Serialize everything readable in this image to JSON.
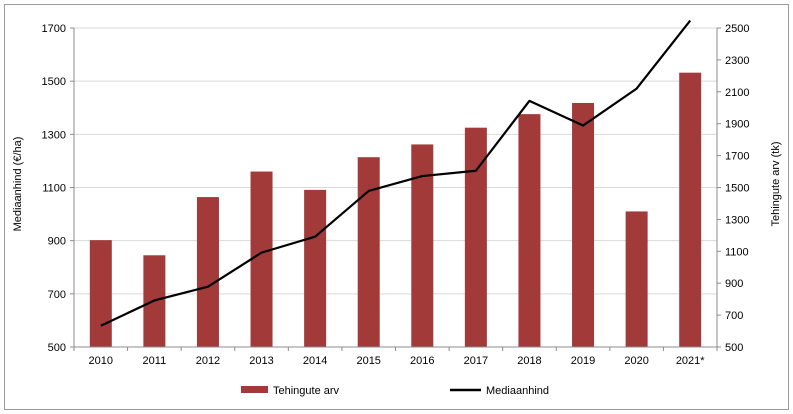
{
  "chart_data": {
    "type": "bar",
    "categories": [
      "2010",
      "2011",
      "2012",
      "2013",
      "2014",
      "2015",
      "2016",
      "2017",
      "2018",
      "2019",
      "2020",
      "2021*"
    ],
    "series": [
      {
        "name": "Tehingute arv",
        "type": "bar",
        "axis": "right",
        "color": "#a33a3a",
        "values": [
          1170,
          1075,
          1440,
          1600,
          1485,
          1690,
          1770,
          1875,
          1960,
          2030,
          1350,
          2220
        ]
      },
      {
        "name": "Mediaanhind",
        "type": "line",
        "axis": "left",
        "color": "#000000",
        "values": [
          580,
          675,
          727,
          855,
          915,
          1087,
          1143,
          1163,
          1426,
          1333,
          1472,
          1728
        ]
      }
    ],
    "ylabel": "Mediaanhind (€/ha)",
    "y2label": "Tehingute arv (tk)",
    "ylim": [
      500,
      1700
    ],
    "y2lim": [
      500,
      2500
    ],
    "yticks": [
      "500",
      "700",
      "900",
      "1100",
      "1300",
      "1500",
      "1700"
    ],
    "y2ticks": [
      "500",
      "700",
      "900",
      "1100",
      "1300",
      "1500",
      "1700",
      "1900",
      "2100",
      "2300",
      "2500"
    ],
    "grid": true,
    "legend": "bottom"
  }
}
